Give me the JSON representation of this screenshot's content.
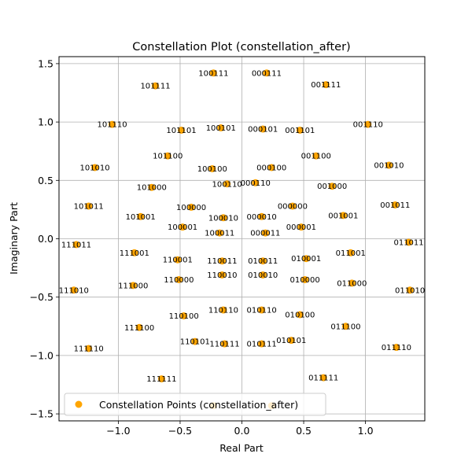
{
  "chart_data": {
    "type": "scatter",
    "title": "Constellation Plot (constellation_after)",
    "xlabel": "Real Part",
    "ylabel": "Imaginary Part",
    "xlim": [
      -1.48,
      1.48
    ],
    "ylim": [
      -1.56,
      1.56
    ],
    "xticks": [
      -1.0,
      -0.5,
      0.0,
      0.5,
      1.0
    ],
    "xtick_labels": [
      "−1.0",
      "−0.5",
      "0.0",
      "0.5",
      "1.0"
    ],
    "yticks": [
      -1.5,
      -1.0,
      -0.5,
      0.0,
      0.5,
      1.0,
      1.5
    ],
    "ytick_labels": [
      "−1.5",
      "−1.0",
      "−0.5",
      "0.0",
      "0.5",
      "1.0",
      "1.5"
    ],
    "grid": true,
    "legend": {
      "placement": "lower-left",
      "label": "Constellation Points (constellation_after)"
    },
    "marker_color": "#ffa500",
    "series": [
      {
        "name": "Constellation Points (constellation_after)",
        "points": [
          {
            "x": -0.7,
            "y": 1.31,
            "label": "101111"
          },
          {
            "x": -0.23,
            "y": 1.42,
            "label": "100111"
          },
          {
            "x": 0.2,
            "y": 1.42,
            "label": "000111"
          },
          {
            "x": 0.68,
            "y": 1.32,
            "label": "001111"
          },
          {
            "x": -1.05,
            "y": 0.98,
            "label": "101110"
          },
          {
            "x": -0.49,
            "y": 0.93,
            "label": "101101"
          },
          {
            "x": -0.17,
            "y": 0.95,
            "label": "100101"
          },
          {
            "x": 0.17,
            "y": 0.94,
            "label": "000101"
          },
          {
            "x": 0.47,
            "y": 0.93,
            "label": "001101"
          },
          {
            "x": 1.02,
            "y": 0.98,
            "label": "001110"
          },
          {
            "x": -0.6,
            "y": 0.71,
            "label": "101100"
          },
          {
            "x": -0.24,
            "y": 0.6,
            "label": "100100"
          },
          {
            "x": 0.24,
            "y": 0.61,
            "label": "000100"
          },
          {
            "x": 0.6,
            "y": 0.71,
            "label": "001100"
          },
          {
            "x": -1.19,
            "y": 0.61,
            "label": "101010"
          },
          {
            "x": 1.19,
            "y": 0.63,
            "label": "001010"
          },
          {
            "x": -0.73,
            "y": 0.44,
            "label": "101000"
          },
          {
            "x": -0.12,
            "y": 0.47,
            "label": "100110"
          },
          {
            "x": 0.11,
            "y": 0.48,
            "label": "000110"
          },
          {
            "x": 0.73,
            "y": 0.45,
            "label": "001000"
          },
          {
            "x": -1.24,
            "y": 0.28,
            "label": "101011"
          },
          {
            "x": -0.41,
            "y": 0.27,
            "label": "100000"
          },
          {
            "x": 0.41,
            "y": 0.28,
            "label": "000000"
          },
          {
            "x": 1.24,
            "y": 0.29,
            "label": "001011"
          },
          {
            "x": -0.82,
            "y": 0.19,
            "label": "101001"
          },
          {
            "x": -0.15,
            "y": 0.18,
            "label": "100010"
          },
          {
            "x": 0.16,
            "y": 0.19,
            "label": "000010"
          },
          {
            "x": 0.82,
            "y": 0.2,
            "label": "001001"
          },
          {
            "x": -0.48,
            "y": 0.1,
            "label": "100001"
          },
          {
            "x": 0.48,
            "y": 0.1,
            "label": "000001"
          },
          {
            "x": -0.18,
            "y": 0.05,
            "label": "100011"
          },
          {
            "x": 0.19,
            "y": 0.05,
            "label": "000011"
          },
          {
            "x": -1.34,
            "y": -0.05,
            "label": "111011"
          },
          {
            "x": 1.35,
            "y": -0.03,
            "label": "011011"
          },
          {
            "x": -0.87,
            "y": -0.12,
            "label": "111001"
          },
          {
            "x": 0.88,
            "y": -0.12,
            "label": "011001"
          },
          {
            "x": -0.52,
            "y": -0.18,
            "label": "110001"
          },
          {
            "x": -0.16,
            "y": -0.19,
            "label": "110011"
          },
          {
            "x": 0.17,
            "y": -0.19,
            "label": "010011"
          },
          {
            "x": 0.52,
            "y": -0.17,
            "label": "010001"
          },
          {
            "x": -0.16,
            "y": -0.31,
            "label": "110010"
          },
          {
            "x": 0.17,
            "y": -0.31,
            "label": "010010"
          },
          {
            "x": -0.51,
            "y": -0.35,
            "label": "110000"
          },
          {
            "x": 0.51,
            "y": -0.35,
            "label": "010000"
          },
          {
            "x": -0.88,
            "y": -0.4,
            "label": "111000"
          },
          {
            "x": 0.89,
            "y": -0.38,
            "label": "011000"
          },
          {
            "x": -1.36,
            "y": -0.44,
            "label": "111010"
          },
          {
            "x": 1.36,
            "y": -0.44,
            "label": "011010"
          },
          {
            "x": -0.15,
            "y": -0.61,
            "label": "110110"
          },
          {
            "x": 0.16,
            "y": -0.61,
            "label": "010110"
          },
          {
            "x": -0.47,
            "y": -0.66,
            "label": "110100"
          },
          {
            "x": 0.47,
            "y": -0.65,
            "label": "010100"
          },
          {
            "x": -0.83,
            "y": -0.76,
            "label": "111100"
          },
          {
            "x": 0.84,
            "y": -0.75,
            "label": "011100"
          },
          {
            "x": -0.38,
            "y": -0.88,
            "label": "110101"
          },
          {
            "x": -0.14,
            "y": -0.9,
            "label": "110111"
          },
          {
            "x": 0.16,
            "y": -0.9,
            "label": "010111"
          },
          {
            "x": 0.4,
            "y": -0.87,
            "label": "010101"
          },
          {
            "x": -1.24,
            "y": -0.94,
            "label": "111110"
          },
          {
            "x": 1.25,
            "y": -0.93,
            "label": "011110"
          },
          {
            "x": -0.65,
            "y": -1.2,
            "label": "111111"
          },
          {
            "x": 0.66,
            "y": -1.19,
            "label": "011111"
          },
          {
            "x": -0.23,
            "y": -1.43,
            "label": ""
          },
          {
            "x": 0.24,
            "y": -1.43,
            "label": ""
          }
        ]
      }
    ]
  }
}
